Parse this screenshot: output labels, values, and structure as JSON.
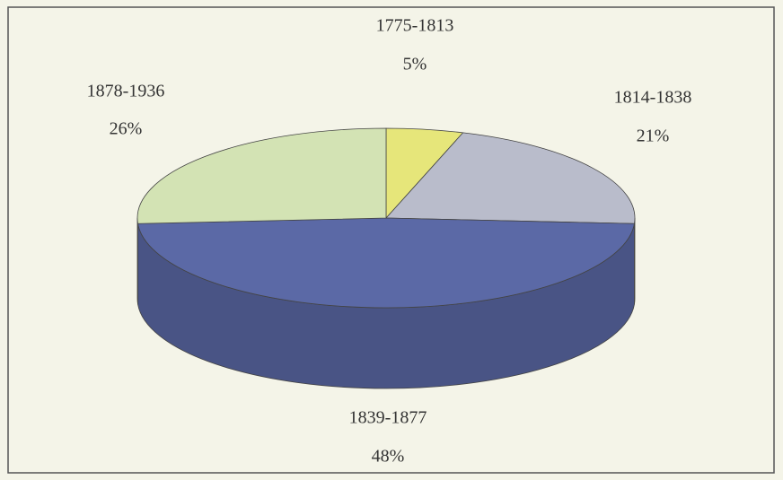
{
  "chart_data": {
    "type": "pie3d",
    "categories": [
      "1775-1813",
      "1814-1838",
      "1839-1877",
      "1878-1936"
    ],
    "values": [
      5,
      21,
      48,
      26
    ],
    "value_labels": [
      "5%",
      "21%",
      "48%",
      "26%"
    ],
    "colors": [
      "#e6e67a",
      "#b9bccb",
      "#5b69a6",
      "#d3e3b4"
    ]
  }
}
